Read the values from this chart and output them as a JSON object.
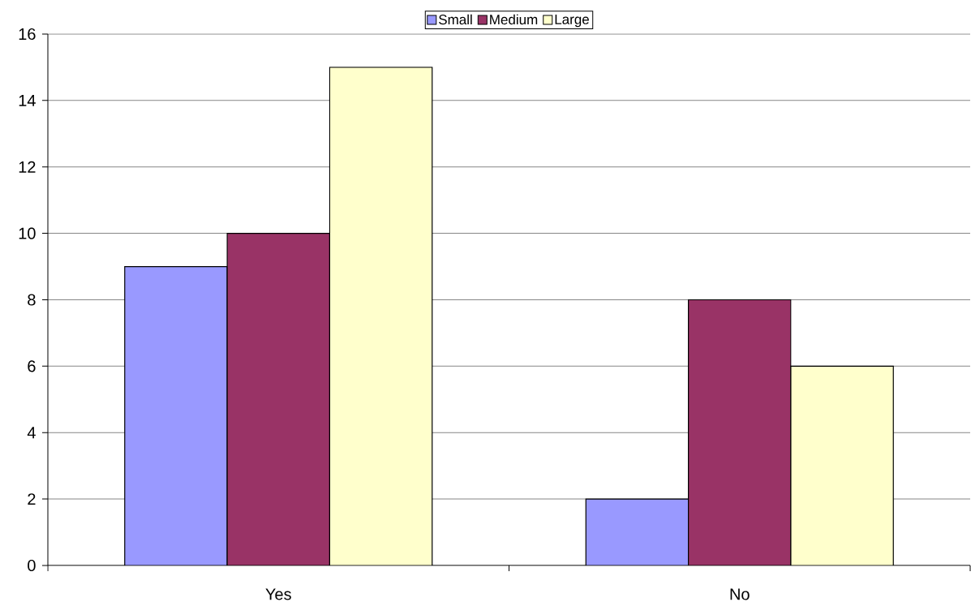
{
  "chart_data": {
    "type": "bar",
    "categories": [
      "Yes",
      "No"
    ],
    "series": [
      {
        "name": "Small",
        "color": "#9999ff",
        "values": [
          9,
          2
        ]
      },
      {
        "name": "Medium",
        "color": "#993366",
        "values": [
          10,
          8
        ]
      },
      {
        "name": "Large",
        "color": "#ffffcc",
        "values": [
          15,
          6
        ]
      }
    ],
    "ylim": [
      0,
      16
    ],
    "yticks": [
      0,
      2,
      4,
      6,
      8,
      10,
      12,
      14,
      16
    ],
    "grid": "y",
    "legend": "top"
  }
}
